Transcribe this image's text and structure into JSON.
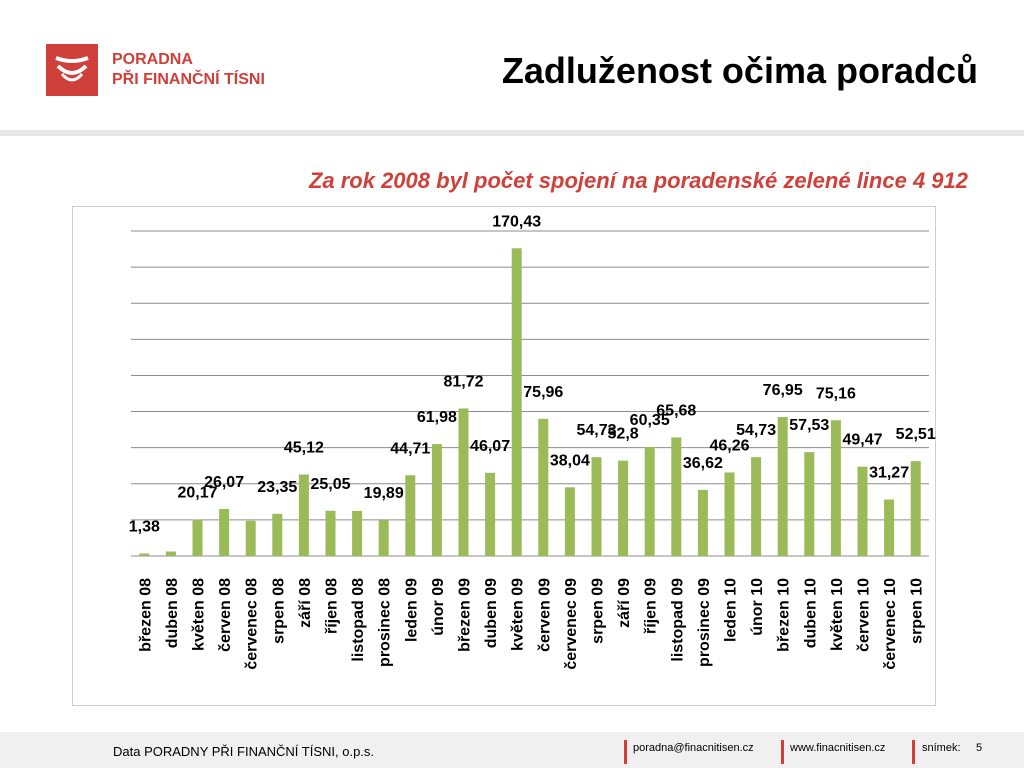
{
  "header": {
    "logo_line1": "PORADNA",
    "logo_line2": "PŘI FINANČNÍ TÍSNI",
    "title": "Zadluženost očima poradců"
  },
  "subtitle": "Za rok 2008 byl počet spojení na poradenské zelené lince 4 912",
  "footer": {
    "org": "Data PORADNY PŘI FINANČNÍ TÍSNI, o.p.s.",
    "email": "poradna@finacnitisen.cz",
    "web": "www.finacnitisen.cz",
    "slide_label": "snímek:",
    "slide_number": "5"
  },
  "colors": {
    "bar": "#9bbb59",
    "accent": "#d0403a",
    "grid": "#8c8c8c"
  },
  "chart_data": {
    "type": "bar",
    "title": "",
    "xlabel": "",
    "ylabel": "",
    "ylim": [
      0,
      180
    ],
    "grid": true,
    "categories": [
      "březen 08",
      "duben 08",
      "květen 08",
      "červen 08",
      "červenec 08",
      "srpen 08",
      "září 08",
      "říjen 08",
      "listopad 08",
      "prosinec 08",
      "leden 09",
      "únor 09",
      "březen 09",
      "duben 09",
      "květen 09",
      "červen 09",
      "červenec 09",
      "srpen 09",
      "září 09",
      "říjen 09",
      "listopad 09",
      "prosinec 09",
      "leden 10",
      "únor 10",
      "březen 10",
      "duben 10",
      "květen 10",
      "červen 10",
      "červenec 10",
      "srpen 10"
    ],
    "values": [
      1.38,
      2.5,
      20.17,
      26.07,
      19.5,
      23.35,
      45.12,
      25.05,
      25.0,
      19.89,
      44.71,
      61.98,
      81.72,
      46.07,
      170.43,
      75.96,
      38.04,
      54.73,
      52.8,
      60.35,
      65.68,
      36.62,
      46.26,
      54.73,
      76.95,
      57.53,
      75.16,
      49.47,
      31.27,
      52.51
    ],
    "labels": [
      "1,38",
      "",
      "20,17",
      "26,07",
      "",
      "23,35",
      "45,12",
      "25,05",
      "",
      "19,89",
      "44,71",
      "61,98",
      "81,72",
      "46,07",
      "170,43",
      "75,96",
      "38,04",
      "54,73",
      "52,8",
      "60,35",
      "65,68",
      "36,62",
      "46,26",
      "54,73",
      "76,95",
      "57,53",
      "75,16",
      "49,47",
      "31,27",
      "52,51"
    ]
  }
}
